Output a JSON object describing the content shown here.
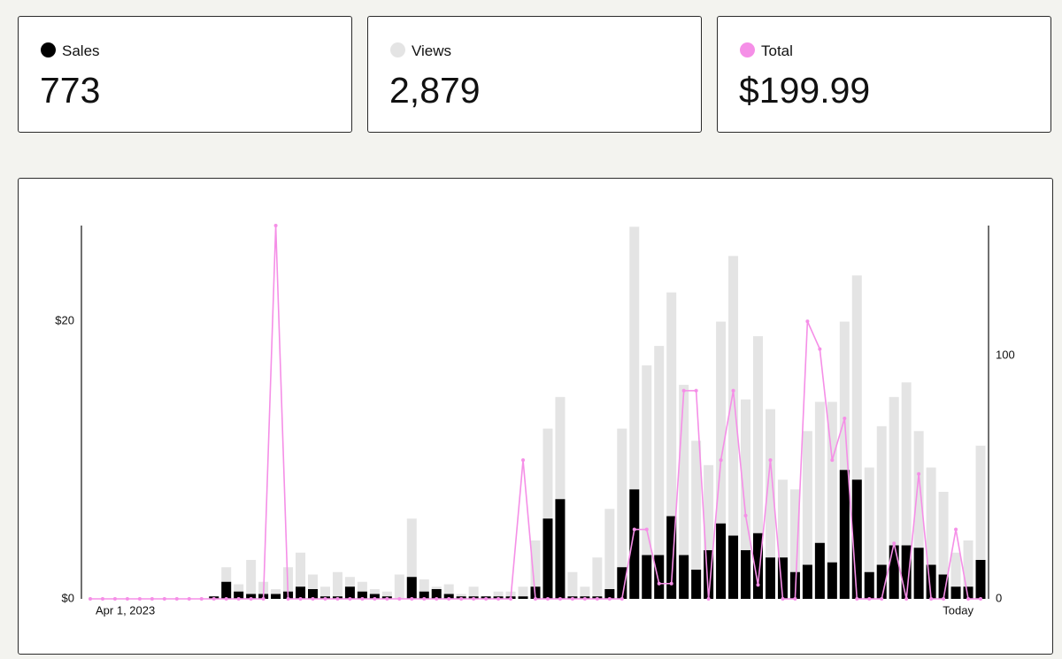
{
  "chart_data": {
    "type": "bar",
    "categories": [
      "Apr 1, 2023",
      null,
      null,
      null,
      null,
      null,
      null,
      null,
      null,
      null,
      null,
      null,
      null,
      null,
      null,
      null,
      null,
      null,
      null,
      null,
      null,
      null,
      null,
      null,
      null,
      null,
      null,
      null,
      null,
      null,
      null,
      null,
      null,
      null,
      null,
      null,
      null,
      null,
      null,
      null,
      null,
      null,
      null,
      null,
      null,
      null,
      null,
      null,
      null,
      null,
      null,
      null,
      null,
      null,
      null,
      null,
      null,
      null,
      null,
      null,
      null,
      null,
      null,
      null,
      null,
      null,
      null,
      null,
      null,
      null,
      null,
      null,
      "Today"
    ],
    "ylim": [
      0,
      26.9
    ],
    "yticks": [
      {
        "value": 0,
        "label": "$0"
      },
      {
        "value": 20,
        "label": "$20"
      }
    ],
    "y2lim": [
      0,
      153.5
    ],
    "y2ticks": [
      0,
      100
    ],
    "series": [
      {
        "name": "Views",
        "summary": "2,879",
        "color": "#e4e4e4",
        "type": "bar",
        "axis": "y2",
        "values": [
          0,
          0,
          0,
          0,
          0,
          0,
          0,
          0,
          0,
          0,
          1,
          13,
          6,
          16,
          7,
          4,
          13,
          19,
          10,
          5,
          11,
          9,
          7,
          4,
          3,
          10,
          33,
          8,
          5,
          6,
          2,
          5,
          1,
          3,
          3,
          5,
          24,
          70,
          83,
          11,
          5,
          17,
          37,
          70,
          153,
          96,
          104,
          126,
          88,
          65,
          55,
          114,
          141,
          82,
          108,
          78,
          49,
          45,
          69,
          81,
          81,
          114,
          133,
          54,
          71,
          83,
          89,
          69,
          54,
          44,
          19,
          24,
          63
        ]
      },
      {
        "name": "Sales",
        "summary": "773",
        "color": "#000000",
        "type": "bar",
        "axis": "y2",
        "values": [
          0,
          0,
          0,
          0,
          0,
          0,
          0,
          0,
          0,
          0,
          1,
          7,
          3,
          2,
          2,
          2,
          3,
          5,
          4,
          1,
          1,
          5,
          3,
          2,
          1,
          0,
          9,
          3,
          4,
          2,
          1,
          1,
          1,
          1,
          1,
          1,
          5,
          33,
          41,
          1,
          1,
          1,
          4,
          13,
          45,
          18,
          18,
          34,
          18,
          12,
          20,
          31,
          26,
          20,
          27,
          17,
          17,
          11,
          14,
          23,
          15,
          53,
          49,
          11,
          14,
          22,
          22,
          21,
          14,
          10,
          5,
          5,
          16
        ]
      },
      {
        "name": "Total",
        "summary": "$199.99",
        "color": "#f58fe7",
        "type": "line",
        "values": [
          0,
          0,
          0,
          0,
          0,
          0,
          0,
          0,
          0,
          0,
          0,
          0,
          0,
          0,
          0,
          26.9,
          0,
          0,
          0,
          0,
          0,
          0,
          0,
          0,
          0,
          0,
          0,
          0,
          0,
          0,
          0,
          0,
          0,
          0,
          0,
          10,
          0,
          0,
          0,
          0,
          0,
          0,
          0,
          0,
          5,
          5,
          1.1,
          1.1,
          15,
          15,
          0,
          10,
          15,
          6,
          1,
          10,
          0,
          0,
          20,
          18,
          10,
          13,
          0,
          0,
          0,
          4,
          0,
          9,
          0,
          0,
          5,
          0,
          0
        ]
      }
    ]
  }
}
